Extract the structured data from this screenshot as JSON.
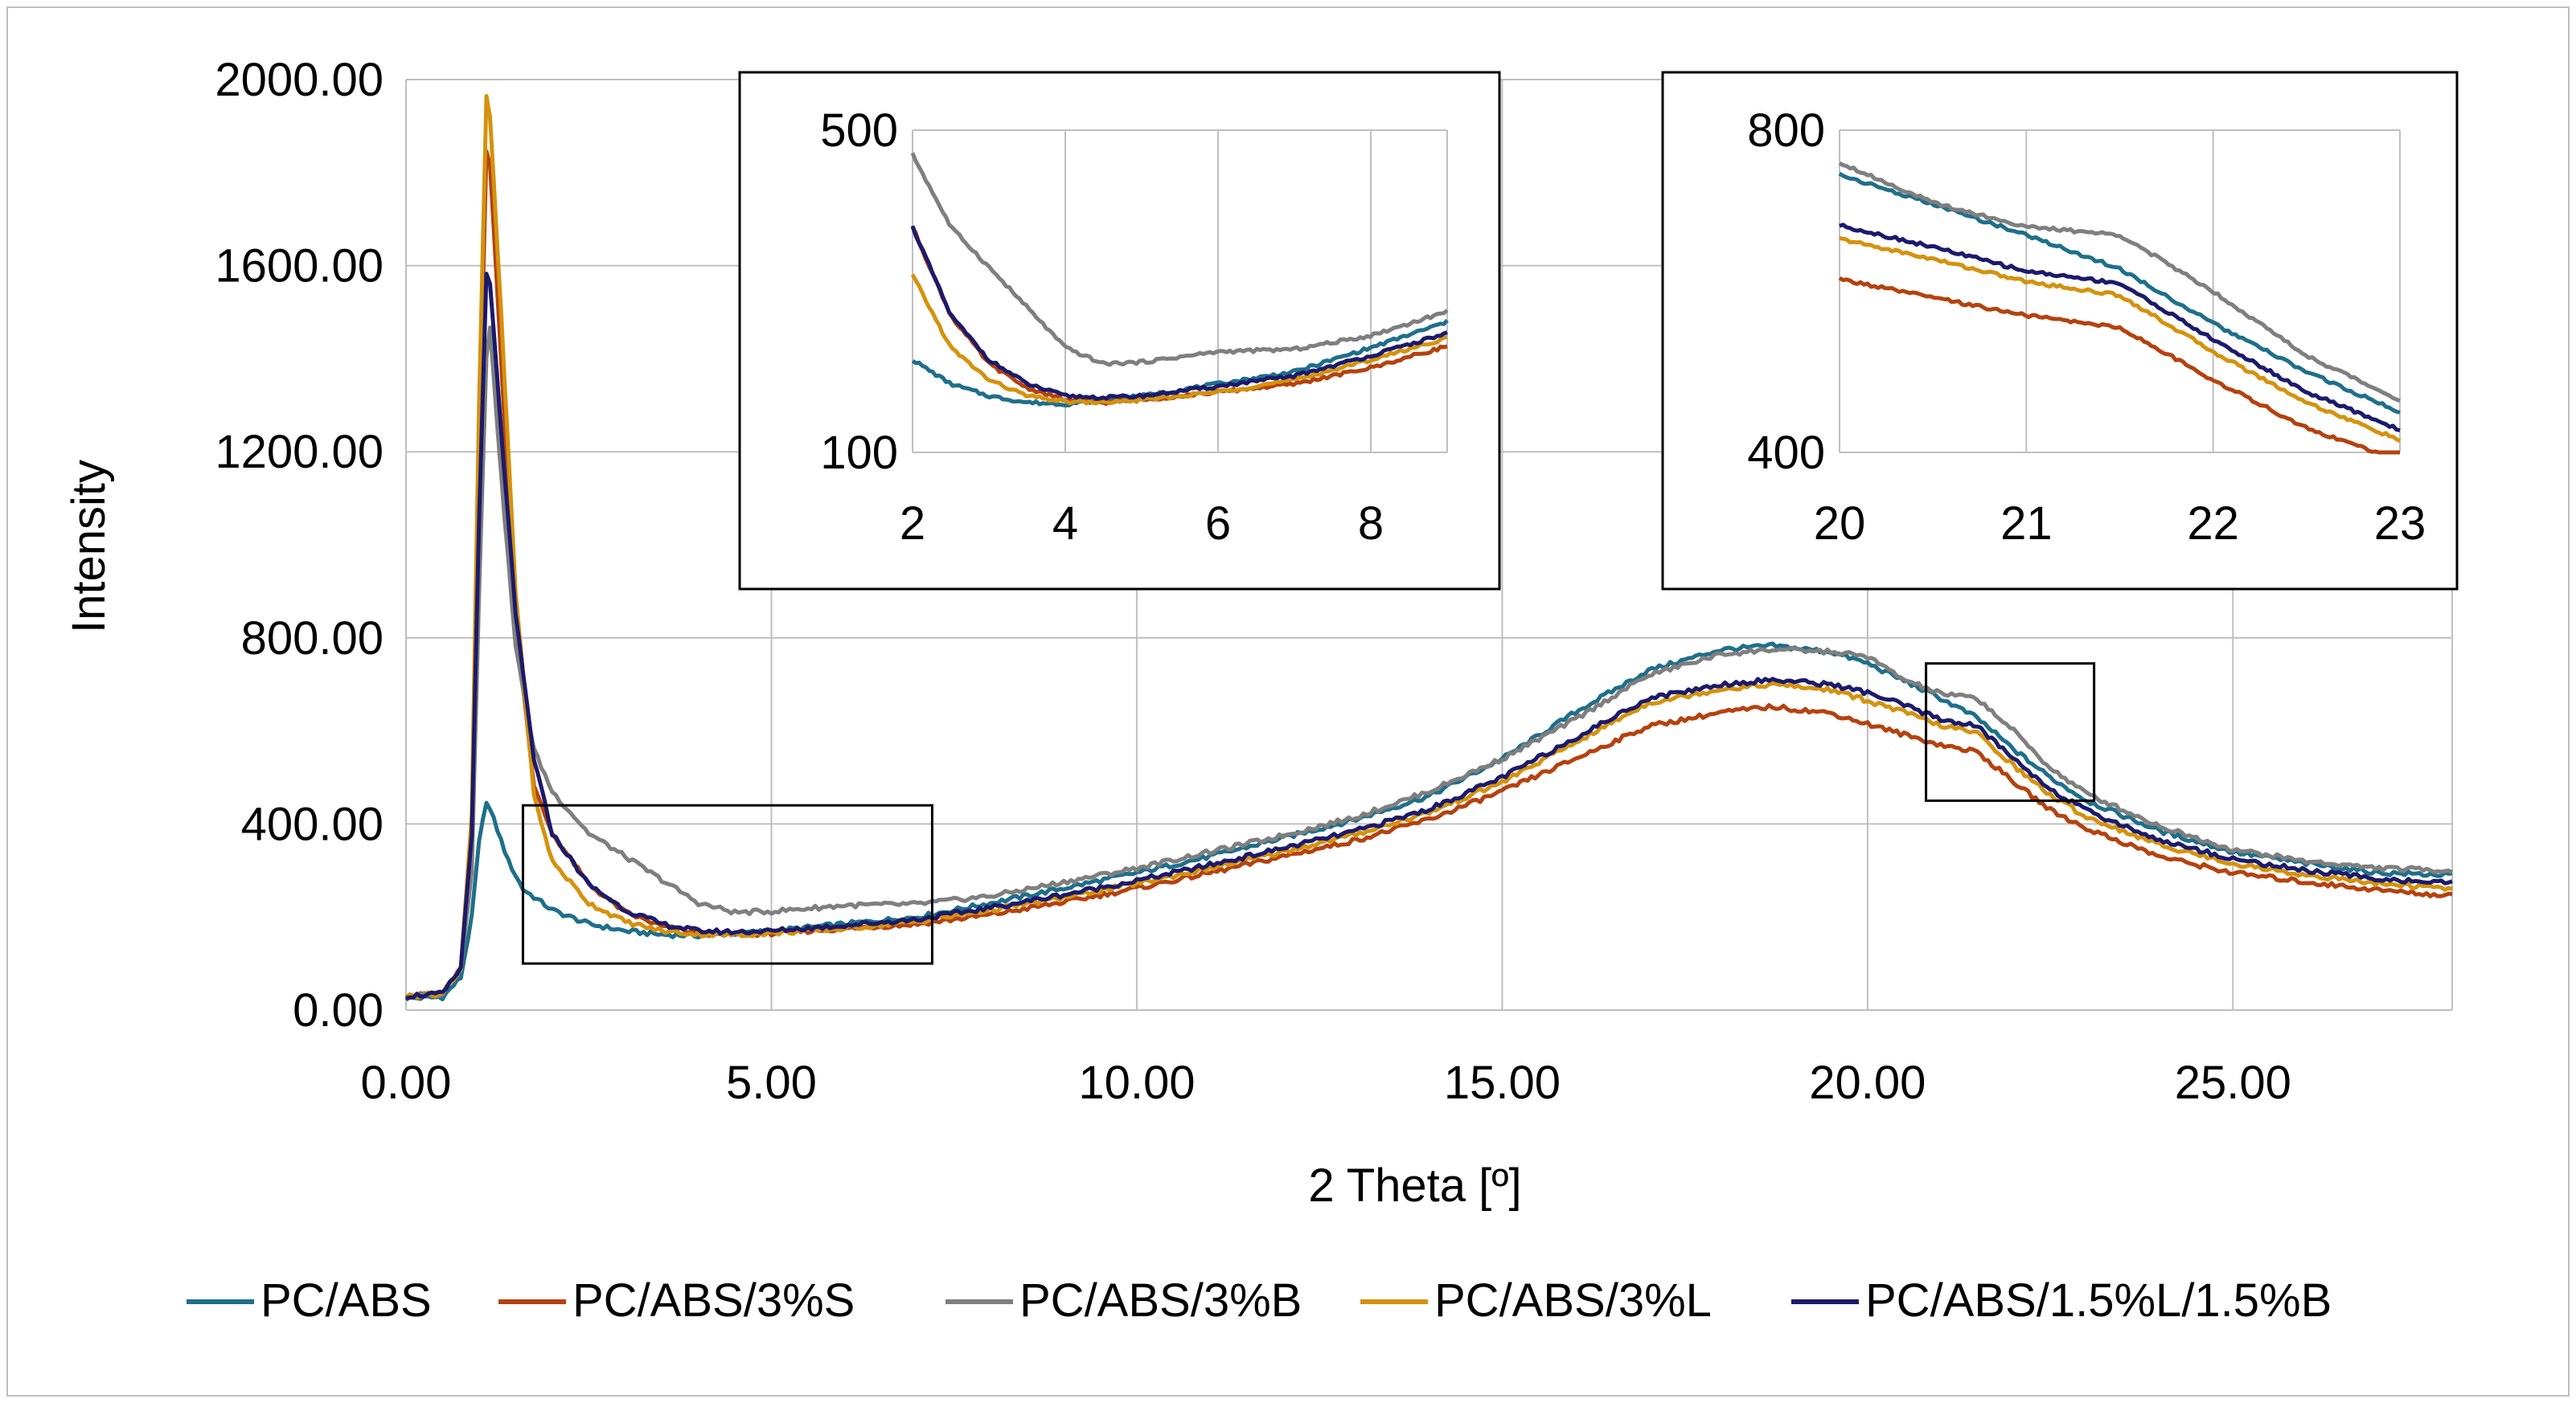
{
  "chart_data": {
    "type": "line",
    "title": "",
    "xlabel": "2 Theta [º]",
    "ylabel": "Intensity",
    "xlim": [
      0,
      28
    ],
    "ylim": [
      0,
      2000
    ],
    "x_ticks": [
      "0.00",
      "5.00",
      "10.00",
      "15.00",
      "20.00",
      "25.00"
    ],
    "y_ticks": [
      "0.00",
      "400.00",
      "800.00",
      "1200.00",
      "1600.00",
      "2000.00"
    ],
    "grid": true,
    "legend_position": "bottom",
    "series": [
      {
        "name": "PC/ABS",
        "color": "#1f6f8b",
        "points": [
          [
            0,
            25
          ],
          [
            0.5,
            28
          ],
          [
            0.75,
            70
          ],
          [
            0.9,
            200
          ],
          [
            1.0,
            360
          ],
          [
            1.1,
            450
          ],
          [
            1.2,
            410
          ],
          [
            1.4,
            320
          ],
          [
            1.6,
            260
          ],
          [
            2.0,
            215
          ],
          [
            2.5,
            185
          ],
          [
            3.0,
            170
          ],
          [
            3.5,
            162
          ],
          [
            4.0,
            160
          ],
          [
            4.5,
            165
          ],
          [
            5.0,
            170
          ],
          [
            6.0,
            185
          ],
          [
            7.0,
            200
          ],
          [
            8.0,
            230
          ],
          [
            9.0,
            262
          ],
          [
            10.0,
            295
          ],
          [
            11.0,
            330
          ],
          [
            12.0,
            370
          ],
          [
            13.0,
            410
          ],
          [
            14.0,
            460
          ],
          [
            15.0,
            540
          ],
          [
            16.0,
            640
          ],
          [
            17.0,
            730
          ],
          [
            18.0,
            775
          ],
          [
            18.7,
            783
          ],
          [
            19.5,
            770
          ],
          [
            20.0,
            745
          ],
          [
            20.5,
            708
          ],
          [
            21.0,
            670
          ],
          [
            21.5,
            628
          ],
          [
            22.0,
            560
          ],
          [
            22.5,
            500
          ],
          [
            23.0,
            450
          ],
          [
            24.0,
            385
          ],
          [
            25.0,
            340
          ],
          [
            26.0,
            315
          ],
          [
            27.0,
            295
          ],
          [
            28.0,
            290
          ]
        ]
      },
      {
        "name": "PC/ABS/3%S",
        "color": "#b5420f",
        "points": [
          [
            0,
            30
          ],
          [
            0.5,
            35
          ],
          [
            0.75,
            90
          ],
          [
            0.9,
            400
          ],
          [
            1.0,
            1200
          ],
          [
            1.1,
            1850
          ],
          [
            1.15,
            1820
          ],
          [
            1.3,
            1400
          ],
          [
            1.5,
            850
          ],
          [
            1.75,
            480
          ],
          [
            2.0,
            380
          ],
          [
            2.5,
            270
          ],
          [
            3.0,
            210
          ],
          [
            3.5,
            180
          ],
          [
            4.0,
            165
          ],
          [
            4.5,
            162
          ],
          [
            5.0,
            165
          ],
          [
            6.0,
            175
          ],
          [
            7.0,
            185
          ],
          [
            8.0,
            205
          ],
          [
            9.0,
            232
          ],
          [
            10.0,
            262
          ],
          [
            11.0,
            295
          ],
          [
            12.0,
            330
          ],
          [
            13.0,
            365
          ],
          [
            14.0,
            410
          ],
          [
            15.0,
            470
          ],
          [
            16.0,
            540
          ],
          [
            17.0,
            610
          ],
          [
            18.0,
            640
          ],
          [
            18.7,
            652
          ],
          [
            19.5,
            638
          ],
          [
            20.0,
            615
          ],
          [
            20.5,
            592
          ],
          [
            21.0,
            570
          ],
          [
            21.5,
            555
          ],
          [
            22.0,
            490
          ],
          [
            22.5,
            430
          ],
          [
            23.0,
            390
          ],
          [
            24.0,
            330
          ],
          [
            25.0,
            295
          ],
          [
            26.0,
            275
          ],
          [
            27.0,
            258
          ],
          [
            28.0,
            245
          ]
        ]
      },
      {
        "name": "PC/ABS/3%B",
        "color": "#7f7f7f",
        "points": [
          [
            0,
            30
          ],
          [
            0.5,
            35
          ],
          [
            0.75,
            90
          ],
          [
            0.9,
            300
          ],
          [
            1.0,
            900
          ],
          [
            1.1,
            1400
          ],
          [
            1.15,
            1470
          ],
          [
            1.3,
            1150
          ],
          [
            1.5,
            780
          ],
          [
            1.75,
            560
          ],
          [
            2.0,
            470
          ],
          [
            2.5,
            380
          ],
          [
            3.0,
            330
          ],
          [
            3.5,
            280
          ],
          [
            4.0,
            230
          ],
          [
            4.5,
            210
          ],
          [
            5.0,
            212
          ],
          [
            6.0,
            225
          ],
          [
            7.0,
            228
          ],
          [
            8.0,
            245
          ],
          [
            9.0,
            275
          ],
          [
            10.0,
            305
          ],
          [
            11.0,
            340
          ],
          [
            12.0,
            375
          ],
          [
            13.0,
            415
          ],
          [
            14.0,
            470
          ],
          [
            15.0,
            540
          ],
          [
            16.0,
            625
          ],
          [
            17.0,
            720
          ],
          [
            18.0,
            765
          ],
          [
            18.7,
            775
          ],
          [
            19.5,
            770
          ],
          [
            20.0,
            760
          ],
          [
            20.5,
            710
          ],
          [
            21.0,
            680
          ],
          [
            21.5,
            670
          ],
          [
            22.0,
            600
          ],
          [
            22.5,
            520
          ],
          [
            23.0,
            465
          ],
          [
            24.0,
            395
          ],
          [
            25.0,
            345
          ],
          [
            26.0,
            320
          ],
          [
            27.0,
            305
          ],
          [
            28.0,
            300
          ]
        ]
      },
      {
        "name": "PC/ABS/3%L",
        "color": "#d4920f",
        "points": [
          [
            0,
            30
          ],
          [
            0.5,
            35
          ],
          [
            0.75,
            90
          ],
          [
            0.9,
            420
          ],
          [
            1.0,
            1300
          ],
          [
            1.1,
            1960
          ],
          [
            1.15,
            1920
          ],
          [
            1.3,
            1500
          ],
          [
            1.5,
            900
          ],
          [
            1.75,
            460
          ],
          [
            2.0,
            320
          ],
          [
            2.5,
            230
          ],
          [
            3.0,
            190
          ],
          [
            3.5,
            170
          ],
          [
            4.0,
            163
          ],
          [
            4.5,
            162
          ],
          [
            5.0,
            165
          ],
          [
            6.0,
            175
          ],
          [
            7.0,
            190
          ],
          [
            8.0,
            215
          ],
          [
            9.0,
            242
          ],
          [
            10.0,
            272
          ],
          [
            11.0,
            305
          ],
          [
            12.0,
            340
          ],
          [
            13.0,
            378
          ],
          [
            14.0,
            425
          ],
          [
            15.0,
            490
          ],
          [
            16.0,
            575
          ],
          [
            17.0,
            660
          ],
          [
            18.0,
            690
          ],
          [
            18.7,
            700
          ],
          [
            19.5,
            688
          ],
          [
            20.0,
            665
          ],
          [
            20.5,
            640
          ],
          [
            21.0,
            612
          ],
          [
            21.5,
            595
          ],
          [
            22.0,
            525
          ],
          [
            22.5,
            462
          ],
          [
            23.0,
            415
          ],
          [
            24.0,
            355
          ],
          [
            25.0,
            315
          ],
          [
            26.0,
            290
          ],
          [
            27.0,
            272
          ],
          [
            28.0,
            260
          ]
        ]
      },
      {
        "name": "PC/ABS/1.5%L/1.5%B",
        "color": "#1c1a6b",
        "points": [
          [
            0,
            30
          ],
          [
            0.5,
            35
          ],
          [
            0.75,
            90
          ],
          [
            0.9,
            380
          ],
          [
            1.0,
            1050
          ],
          [
            1.1,
            1580
          ],
          [
            1.15,
            1560
          ],
          [
            1.3,
            1250
          ],
          [
            1.5,
            850
          ],
          [
            1.75,
            540
          ],
          [
            2.0,
            380
          ],
          [
            2.5,
            270
          ],
          [
            3.0,
            215
          ],
          [
            3.5,
            185
          ],
          [
            4.0,
            170
          ],
          [
            4.5,
            168
          ],
          [
            5.0,
            170
          ],
          [
            6.0,
            182
          ],
          [
            7.0,
            195
          ],
          [
            8.0,
            220
          ],
          [
            9.0,
            248
          ],
          [
            10.0,
            278
          ],
          [
            11.0,
            312
          ],
          [
            12.0,
            348
          ],
          [
            13.0,
            385
          ],
          [
            14.0,
            432
          ],
          [
            15.0,
            500
          ],
          [
            16.0,
            585
          ],
          [
            17.0,
            670
          ],
          [
            18.0,
            700
          ],
          [
            18.7,
            710
          ],
          [
            19.5,
            700
          ],
          [
            20.0,
            682
          ],
          [
            20.5,
            655
          ],
          [
            21.0,
            625
          ],
          [
            21.5,
            610
          ],
          [
            22.0,
            540
          ],
          [
            22.5,
            475
          ],
          [
            23.0,
            428
          ],
          [
            24.0,
            365
          ],
          [
            25.0,
            325
          ],
          [
            26.0,
            300
          ],
          [
            27.0,
            282
          ],
          [
            28.0,
            272
          ]
        ]
      }
    ],
    "insets": [
      {
        "name": "low-angle-zoom",
        "xlim": [
          2,
          9
        ],
        "ylim": [
          100,
          500
        ],
        "x_ticks": [
          "2",
          "4",
          "6",
          "8"
        ],
        "y_ticks": [
          "100",
          "500"
        ],
        "source_region_x": [
          1.6,
          7.2
        ],
        "source_region_y": [
          100,
          440
        ]
      },
      {
        "name": "mid-angle-zoom",
        "xlim": [
          20,
          23
        ],
        "ylim": [
          400,
          800
        ],
        "x_ticks": [
          "20",
          "21",
          "22",
          "23"
        ],
        "y_ticks": [
          "400",
          "800"
        ],
        "source_region_x": [
          20.8,
          23.1
        ],
        "source_region_y": [
          450,
          745
        ]
      }
    ]
  }
}
